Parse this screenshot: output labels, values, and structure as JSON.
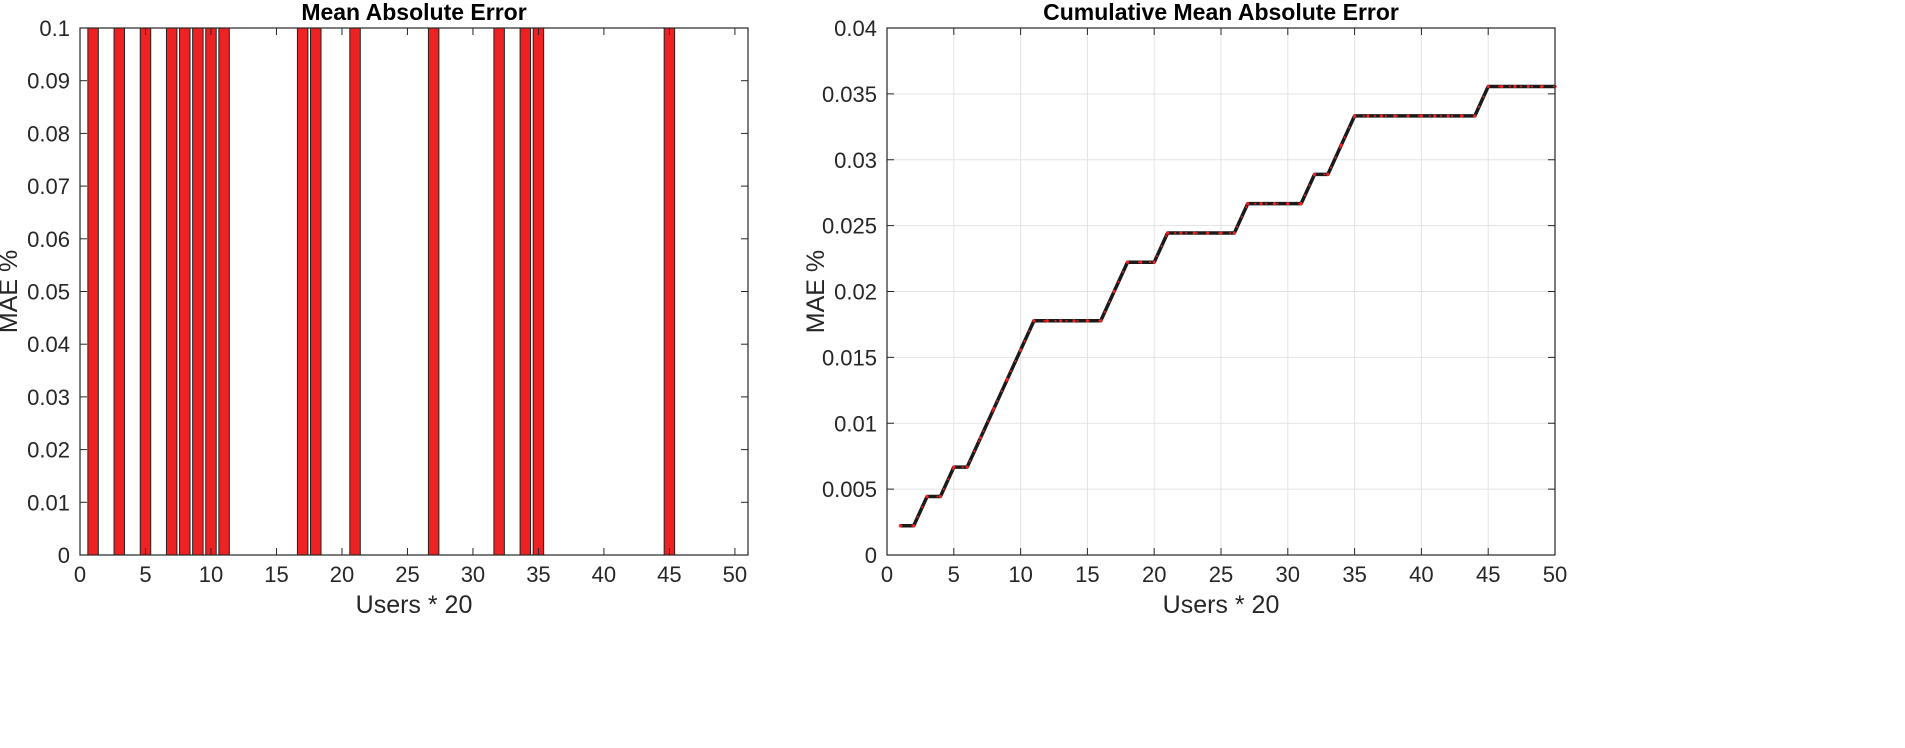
{
  "colors": {
    "bar_fill": "#ee2222",
    "bar_edge": "#222222",
    "line": "#1a1a1a",
    "line_dash": "#ee2222",
    "grid": "#e3e3e3",
    "axis": "#262626"
  },
  "chart_data": [
    {
      "type": "bar",
      "title": "Mean Absolute Error",
      "xlabel": "Users * 20",
      "ylabel": "MAE %",
      "xlim": [
        0,
        51
      ],
      "ylim": [
        0,
        0.1
      ],
      "xticks": [
        0,
        5,
        10,
        15,
        20,
        25,
        30,
        35,
        40,
        45,
        50
      ],
      "yticks": [
        0,
        0.01,
        0.02,
        0.03,
        0.04,
        0.05,
        0.06,
        0.07,
        0.08,
        0.09,
        0.1
      ],
      "ytick_labels": [
        "0",
        "0.01",
        "0.02",
        "0.03",
        "0.04",
        "0.05",
        "0.06",
        "0.07",
        "0.08",
        "0.09",
        "0.1"
      ],
      "grid": false,
      "bar_width": 0.8,
      "x": [
        1,
        3,
        5,
        7,
        8,
        9,
        10,
        11,
        17,
        18,
        21,
        27,
        32,
        34,
        35,
        45
      ],
      "values": [
        0.1,
        0.1,
        0.1,
        0.1,
        0.1,
        0.1,
        0.1,
        0.1,
        0.1,
        0.1,
        0.1,
        0.1,
        0.1,
        0.1,
        0.1,
        0.1
      ]
    },
    {
      "type": "line",
      "title": "Cumulative Mean Absolute Error",
      "xlabel": "Users * 20",
      "ylabel": "MAE %",
      "xlim": [
        0,
        50
      ],
      "ylim": [
        0,
        0.04
      ],
      "xticks": [
        0,
        5,
        10,
        15,
        20,
        25,
        30,
        35,
        40,
        45,
        50
      ],
      "yticks": [
        0,
        0.005,
        0.01,
        0.015,
        0.02,
        0.025,
        0.03,
        0.035,
        0.04
      ],
      "ytick_labels": [
        "0",
        "0.005",
        "0.01",
        "0.015",
        "0.02",
        "0.025",
        "0.03",
        "0.035",
        "0.04"
      ],
      "grid": true,
      "series": [
        {
          "x": [
            1,
            2,
            3,
            4,
            5,
            6,
            7,
            8,
            9,
            10,
            11,
            12,
            13,
            14,
            15,
            16,
            17,
            18,
            19,
            20,
            21,
            22,
            23,
            24,
            25,
            26,
            27,
            28,
            29,
            30,
            31,
            32,
            33,
            34,
            35,
            36,
            37,
            38,
            39,
            40,
            41,
            42,
            43,
            44,
            45,
            46,
            47,
            48,
            49,
            50
          ],
          "values": [
            0.00222,
            0.00222,
            0.00444,
            0.00444,
            0.00667,
            0.00667,
            0.00889,
            0.01111,
            0.01333,
            0.01556,
            0.01778,
            0.01778,
            0.01778,
            0.01778,
            0.01778,
            0.01778,
            0.02,
            0.02222,
            0.02222,
            0.02222,
            0.02444,
            0.02444,
            0.02444,
            0.02444,
            0.02444,
            0.02444,
            0.02667,
            0.02667,
            0.02667,
            0.02667,
            0.02667,
            0.02889,
            0.02889,
            0.03111,
            0.03333,
            0.03333,
            0.03333,
            0.03333,
            0.03333,
            0.03333,
            0.03333,
            0.03333,
            0.03333,
            0.03333,
            0.03556,
            0.03556,
            0.03556,
            0.03556,
            0.03556,
            0.03556
          ]
        }
      ]
    }
  ]
}
